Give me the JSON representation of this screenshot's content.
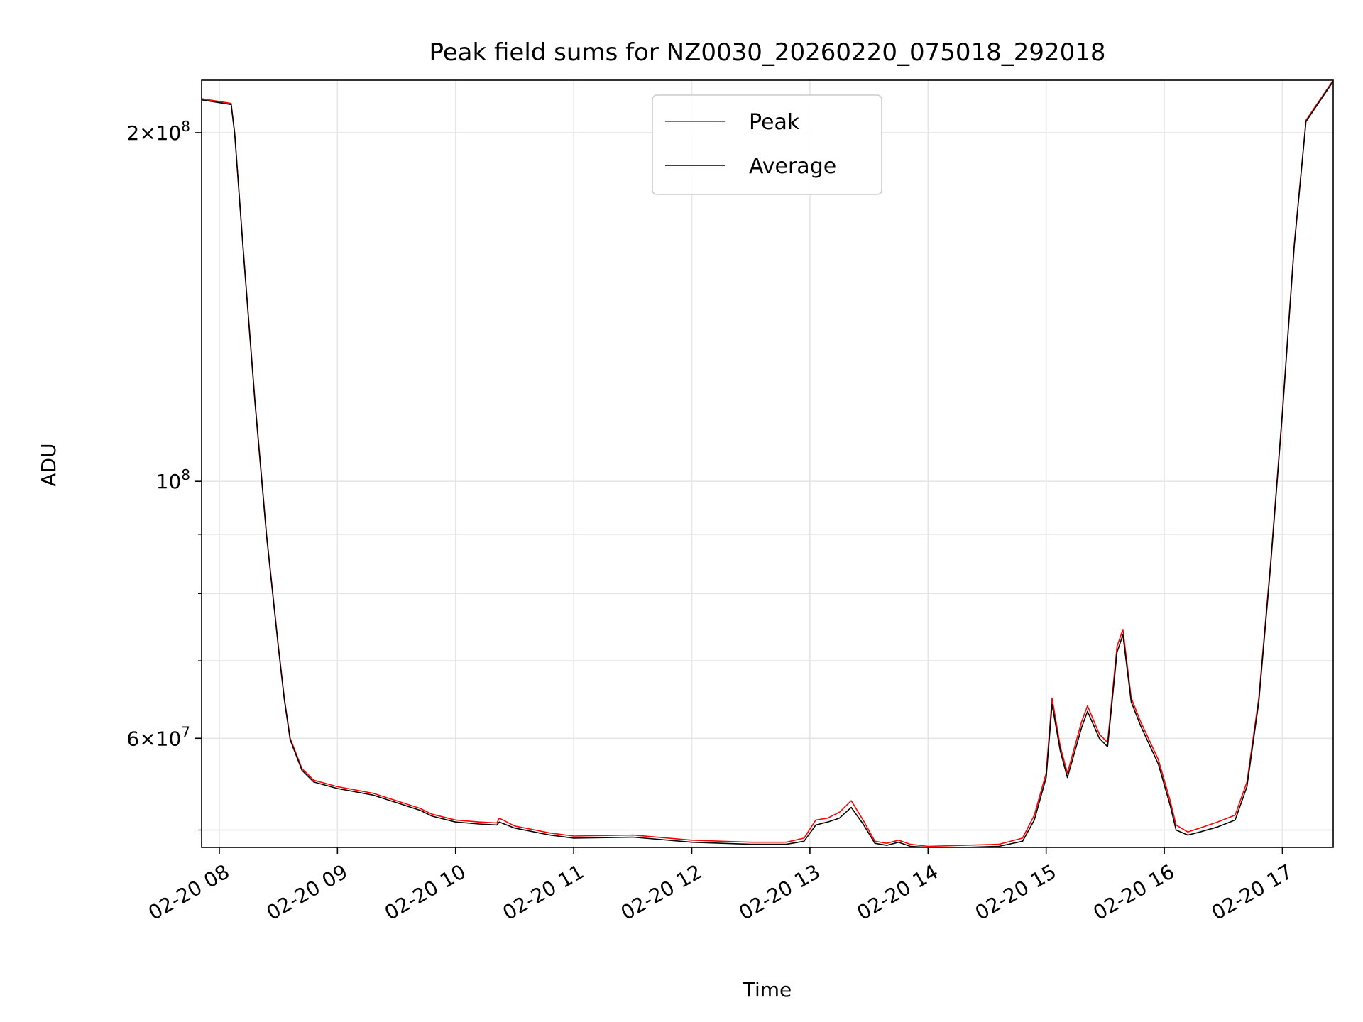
{
  "chart_data": {
    "type": "line",
    "title": "Peak field sums for NZ0030_20260220_075018_292018",
    "xlabel": "Time",
    "ylabel": "ADU",
    "yscale": "log",
    "xlim": [
      7.85,
      17.43
    ],
    "ylim": [
      48300000,
      222000000
    ],
    "grid": true,
    "legend_position": "upper center",
    "x_ticks": [
      {
        "value": 8,
        "label": "02-20 08"
      },
      {
        "value": 9,
        "label": "02-20 09"
      },
      {
        "value": 10,
        "label": "02-20 10"
      },
      {
        "value": 11,
        "label": "02-20 11"
      },
      {
        "value": 12,
        "label": "02-20 12"
      },
      {
        "value": 13,
        "label": "02-20 13"
      },
      {
        "value": 14,
        "label": "02-20 14"
      },
      {
        "value": 15,
        "label": "02-20 15"
      },
      {
        "value": 16,
        "label": "02-20 16"
      },
      {
        "value": 17,
        "label": "02-20 17"
      }
    ],
    "y_ticks": [
      {
        "value": 200000000,
        "mant": "2",
        "exp": "8"
      },
      {
        "value": 100000000,
        "mant": "",
        "exp": "8"
      },
      {
        "value": 60000000,
        "mant": "6",
        "exp": "7"
      }
    ],
    "y_minor_ticks": [
      50000000,
      70000000,
      80000000,
      90000000
    ],
    "series": [
      {
        "name": "Peak",
        "color": "#ff0000",
        "x": [
          7.85,
          8.1,
          8.13,
          8.2,
          8.3,
          8.4,
          8.5,
          8.55,
          8.6,
          8.7,
          8.8,
          9.0,
          9.3,
          9.5,
          9.7,
          9.8,
          10.0,
          10.2,
          10.35,
          10.37,
          10.5,
          10.8,
          11.0,
          11.5,
          12.0,
          12.5,
          12.8,
          12.95,
          13.05,
          13.15,
          13.25,
          13.35,
          13.45,
          13.55,
          13.65,
          13.75,
          13.85,
          14.0,
          14.3,
          14.6,
          14.8,
          14.9,
          15.0,
          15.05,
          15.12,
          15.18,
          15.3,
          15.35,
          15.45,
          15.52,
          15.6,
          15.65,
          15.72,
          15.8,
          15.95,
          16.05,
          16.1,
          16.2,
          16.3,
          16.45,
          16.6,
          16.7,
          16.8,
          16.9,
          17.0,
          17.1,
          17.2,
          17.43
        ],
        "y": [
          214000000,
          212000000,
          200000000,
          160000000,
          118000000,
          90000000,
          72000000,
          65000000,
          60000000,
          56500000,
          55200000,
          54500000,
          53800000,
          53000000,
          52200000,
          51600000,
          51000000,
          50800000,
          50700000,
          51200000,
          50400000,
          49700000,
          49400000,
          49500000,
          49000000,
          48800000,
          48800000,
          49200000,
          51000000,
          51200000,
          51800000,
          53000000,
          51000000,
          48900000,
          48700000,
          49000000,
          48600000,
          48400000,
          48500000,
          48600000,
          49200000,
          51500000,
          56000000,
          65000000,
          59000000,
          56000000,
          62000000,
          64000000,
          60500000,
          59500000,
          72000000,
          74500000,
          65000000,
          62000000,
          57500000,
          53000000,
          50500000,
          49800000,
          50200000,
          50800000,
          51500000,
          55000000,
          65000000,
          85000000,
          115000000,
          160000000,
          205000000,
          222000000
        ]
      },
      {
        "name": "Average",
        "color": "#000000",
        "x": [
          7.85,
          8.1,
          8.13,
          8.2,
          8.3,
          8.4,
          8.5,
          8.55,
          8.6,
          8.7,
          8.8,
          9.0,
          9.3,
          9.5,
          9.7,
          9.8,
          10.0,
          10.2,
          10.35,
          10.37,
          10.5,
          10.8,
          11.0,
          11.5,
          12.0,
          12.5,
          12.8,
          12.95,
          13.05,
          13.15,
          13.25,
          13.35,
          13.45,
          13.55,
          13.65,
          13.75,
          13.85,
          14.0,
          14.3,
          14.6,
          14.8,
          14.9,
          15.0,
          15.05,
          15.12,
          15.18,
          15.3,
          15.35,
          15.45,
          15.52,
          15.6,
          15.65,
          15.72,
          15.8,
          15.95,
          16.05,
          16.1,
          16.2,
          16.3,
          16.45,
          16.6,
          16.7,
          16.8,
          16.9,
          17.0,
          17.1,
          17.2,
          17.43
        ],
        "y": [
          213500000,
          211500000,
          199500000,
          159500000,
          117500000,
          89700000,
          71800000,
          64800000,
          59800000,
          56300000,
          55000000,
          54300000,
          53600000,
          52800000,
          52000000,
          51400000,
          50800000,
          50600000,
          50500000,
          50800000,
          50200000,
          49500000,
          49200000,
          49300000,
          48800000,
          48600000,
          48600000,
          48900000,
          50500000,
          50800000,
          51200000,
          52300000,
          50600000,
          48700000,
          48500000,
          48800000,
          48400000,
          48300000,
          48300000,
          48400000,
          48900000,
          51000000,
          55500000,
          64200000,
          58500000,
          55500000,
          61300000,
          63300000,
          60000000,
          59000000,
          71200000,
          73700000,
          64500000,
          61500000,
          57000000,
          52500000,
          50000000,
          49500000,
          49800000,
          50300000,
          51000000,
          54500000,
          64500000,
          84500000,
          114500000,
          159500000,
          204500000,
          221500000
        ]
      }
    ]
  }
}
